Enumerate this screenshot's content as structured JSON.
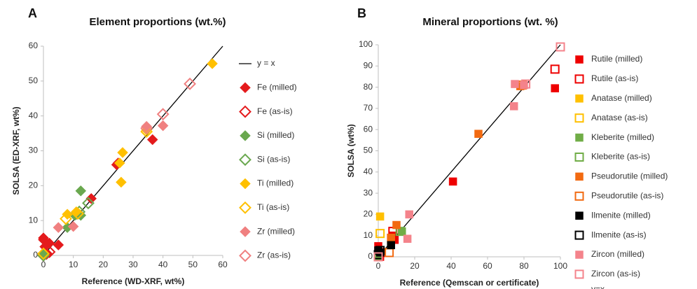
{
  "chart_data": [
    {
      "type": "scatter",
      "panel_label": "A",
      "title": "Element proportions (wt.%)",
      "x_label": "Reference (WD-XRF, wt%)",
      "y_label": "SOLSA (ED-XRF, wt%)",
      "xlim": [
        0,
        60
      ],
      "ylim": [
        0,
        60
      ],
      "xticks": [
        0,
        10,
        20,
        30,
        40,
        50,
        60
      ],
      "yticks": [
        0,
        10,
        20,
        30,
        40,
        50,
        60
      ],
      "reference_line": {
        "name": "y = x",
        "color": "#000000"
      },
      "series": [
        {
          "name": "Fe (milled)",
          "color": "#e41a1c",
          "marker": "diamond",
          "filled": true,
          "x": [
            0,
            0,
            0.5,
            1,
            2,
            5,
            24.5,
            25,
            36.5,
            16
          ],
          "values": [
            5,
            4.5,
            2.5,
            0.5,
            3.5,
            3,
            26,
            26.5,
            33.2,
            16.3
          ]
        },
        {
          "name": "Fe (as-is)",
          "color": "#e41a1c",
          "marker": "diamond",
          "filled": false,
          "x": [
            0,
            1,
            2
          ],
          "values": [
            0,
            0.5,
            1
          ]
        },
        {
          "name": "Si (milled)",
          "color": "#6aa84f",
          "marker": "diamond",
          "filled": true,
          "x": [
            12.5,
            8,
            12.5,
            10.5,
            0.2
          ],
          "values": [
            18.5,
            8,
            11.5,
            11.5,
            0.3
          ]
        },
        {
          "name": "Si (as-is)",
          "color": "#6aa84f",
          "marker": "diamond",
          "filled": false,
          "x": [
            15,
            11,
            12,
            0
          ],
          "values": [
            15,
            12,
            12.5,
            0
          ]
        },
        {
          "name": "Ti (milled)",
          "color": "#ffc000",
          "marker": "diamond",
          "filled": true,
          "x": [
            56.5,
            26.5,
            26,
            25.5,
            8,
            34.5,
            11
          ],
          "values": [
            55,
            29.5,
            21,
            26.5,
            11.8,
            36,
            12.5
          ]
        },
        {
          "name": "Ti (as-is)",
          "color": "#ffc000",
          "marker": "diamond",
          "filled": false,
          "x": [
            34.5,
            7.5,
            11.5,
            0
          ],
          "values": [
            35.5,
            10.5,
            12,
            0.5
          ]
        },
        {
          "name": "Zr (milled)",
          "color": "#f08080",
          "marker": "diamond",
          "filled": true,
          "x": [
            5,
            10,
            34.5,
            40
          ],
          "values": [
            8,
            8.3,
            37,
            37.2
          ]
        },
        {
          "name": "Zr (as-is)",
          "color": "#f08080",
          "marker": "diamond",
          "filled": false,
          "x": [
            49,
            40,
            34.5
          ],
          "values": [
            49.2,
            40.5,
            36.5
          ]
        }
      ]
    },
    {
      "type": "scatter",
      "panel_label": "B",
      "title": "Mineral proportions (wt. %)",
      "x_label": "Reference (Qemscan or certificate)",
      "y_label": "SOLSA (wt%)",
      "xlim": [
        0,
        100
      ],
      "ylim": [
        0,
        100
      ],
      "xticks": [
        0,
        20,
        40,
        60,
        80,
        100
      ],
      "yticks": [
        0,
        10,
        20,
        30,
        40,
        50,
        60,
        70,
        80,
        90,
        100
      ],
      "reference_line": {
        "name": "y=x",
        "color": "#000000"
      },
      "series": [
        {
          "name": "Rutile (milled)",
          "color": "#ee0000",
          "marker": "square",
          "filled": true,
          "x": [
            0,
            7,
            9,
            41,
            97,
            8,
            1
          ],
          "values": [
            5,
            9,
            8,
            35.5,
            79.5,
            10,
            0
          ]
        },
        {
          "name": "Rutile (as-is)",
          "color": "#ee0000",
          "marker": "square",
          "filled": false,
          "x": [
            97,
            8,
            1,
            0
          ],
          "values": [
            88.5,
            12,
            2,
            0
          ]
        },
        {
          "name": "Anatase (milled)",
          "color": "#ffc000",
          "marker": "square",
          "filled": true,
          "x": [
            1,
            0
          ],
          "values": [
            19,
            0
          ]
        },
        {
          "name": "Anatase (as-is)",
          "color": "#ffc000",
          "marker": "square",
          "filled": false,
          "x": [
            1,
            0
          ],
          "values": [
            11,
            0.5
          ]
        },
        {
          "name": "Kleberite (milled)",
          "color": "#70ad47",
          "marker": "square",
          "filled": true,
          "x": [
            13,
            0
          ],
          "values": [
            12,
            0
          ]
        },
        {
          "name": "Kleberite (as-is)",
          "color": "#70ad47",
          "marker": "square",
          "filled": false,
          "x": [
            12,
            0
          ],
          "values": [
            12,
            0
          ]
        },
        {
          "name": "Pseudorutile (milled)",
          "color": "#f26a11",
          "marker": "square",
          "filled": true,
          "x": [
            55,
            78,
            10,
            7
          ],
          "values": [
            58,
            80.5,
            15,
            9
          ]
        },
        {
          "name": "Pseudorutile (as-is)",
          "color": "#f26a11",
          "marker": "square",
          "filled": false,
          "x": [
            79,
            6
          ],
          "values": [
            81,
            2
          ]
        },
        {
          "name": "Ilmenite (milled)",
          "color": "#000000",
          "marker": "square",
          "filled": true,
          "x": [
            7,
            0,
            1
          ],
          "values": [
            5.5,
            3,
            2
          ]
        },
        {
          "name": "Ilmenite (as-is)",
          "color": "#000000",
          "marker": "square",
          "filled": false,
          "x": [
            1,
            0
          ],
          "values": [
            3,
            1
          ]
        },
        {
          "name": "Zircon (milled)",
          "color": "#f4838b",
          "marker": "square",
          "filled": true,
          "x": [
            75,
            74.5,
            17,
            16,
            80
          ],
          "values": [
            81.5,
            71,
            20,
            8.5,
            81
          ]
        },
        {
          "name": "Zircon (as-is)",
          "color": "#f4838b",
          "marker": "square",
          "filled": false,
          "x": [
            100,
            81,
            0
          ],
          "values": [
            99,
            81.5,
            0
          ]
        }
      ]
    }
  ]
}
